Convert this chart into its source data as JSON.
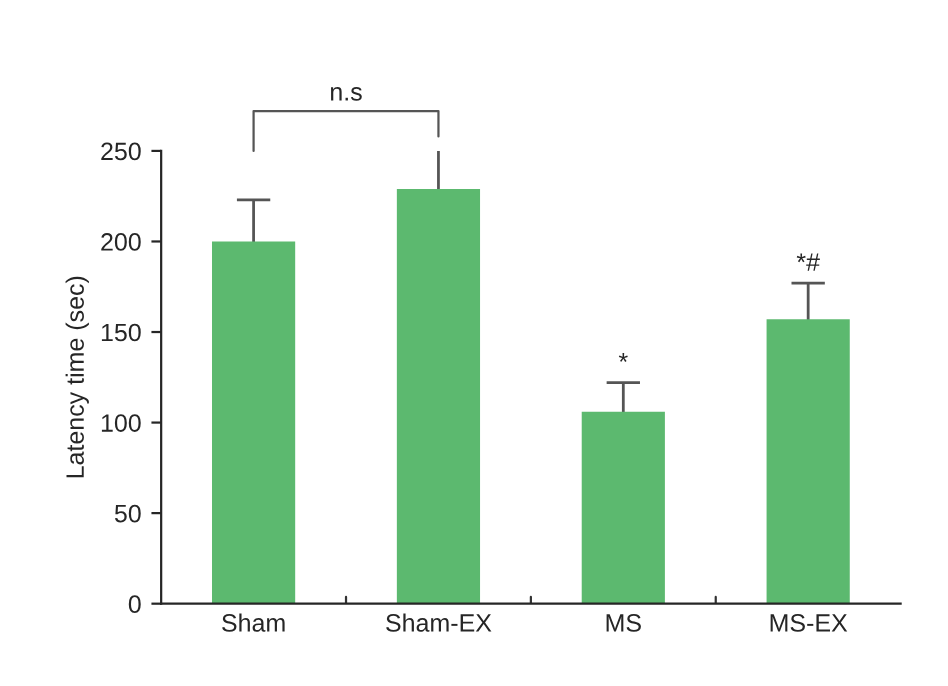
{
  "chart_data": {
    "type": "bar",
    "ylabel": "Latency time (sec)",
    "categories": [
      "Sham",
      "Sham-EX",
      "MS",
      "MS-EX"
    ],
    "values": [
      200,
      229,
      106,
      157
    ],
    "errors": [
      23,
      22,
      16,
      20
    ],
    "color": "#5cb96f",
    "ylim": [
      0,
      250
    ],
    "yticks": [
      0,
      50,
      100,
      150,
      200,
      250
    ],
    "grid": false,
    "annotations": [
      "n.s",
      "*",
      "*#"
    ]
  }
}
